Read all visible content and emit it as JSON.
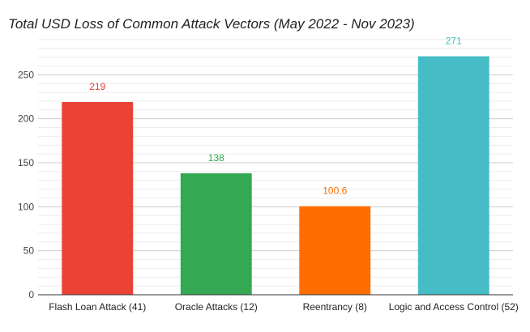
{
  "chart_data": {
    "type": "bar",
    "title": "Total USD Loss of Common Attack Vectors (May 2022 - Nov 2023)",
    "xlabel": "",
    "ylabel": "",
    "categories": [
      "Flash Loan Attack (41)",
      "Oracle Attacks (12)",
      "Reentrancy (8)",
      "Logic and Access Control (52)"
    ],
    "values": [
      219,
      138,
      100.6,
      271
    ],
    "value_labels": [
      "219",
      "138",
      "100.6",
      "271"
    ],
    "colors": [
      "#ea4335",
      "#34a853",
      "#ff6d01",
      "#46bdc6"
    ],
    "ylim": [
      0,
      300
    ],
    "yticks": [
      0,
      50,
      100,
      150,
      200,
      250
    ],
    "grid": true,
    "legend": "none"
  }
}
